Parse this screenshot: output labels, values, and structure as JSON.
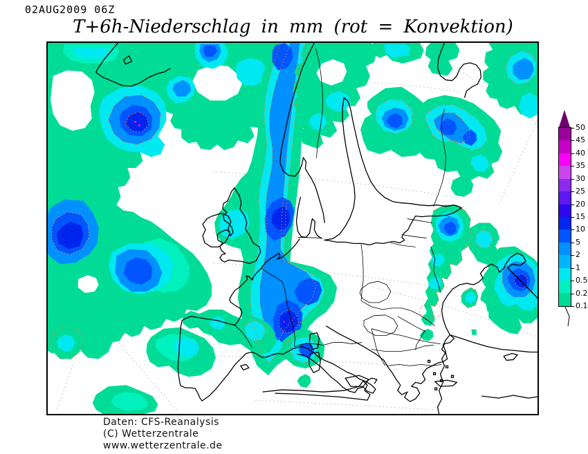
{
  "header": {
    "datetime": "02AUG2009 06Z",
    "title": "T+6h-Niederschlag in mm (rot = Konvektion)"
  },
  "footer": {
    "line1": "Daten: CFS-Reanalysis",
    "line2": "(C) Wetterzentrale",
    "line3": "www.wetterzentrale.de"
  },
  "colorbar": {
    "unit": "mm",
    "labels": [
      "50",
      "45",
      "40",
      "35",
      "30",
      "25",
      "20",
      "15",
      "10",
      "5",
      "2",
      "1",
      "0.5",
      "0.2",
      "0.1"
    ],
    "segments": [
      "#9b009b",
      "#c800c8",
      "#fa00fa",
      "#cc44ee",
      "#8b2bee",
      "#5e17f0",
      "#2e06f0",
      "#0026ee",
      "#0055ff",
      "#0090ff",
      "#00b4ff",
      "#00e8f0",
      "#00f0be",
      "#00dc96"
    ],
    "arrow_color": "#6e006e",
    "tick_color": "#000000"
  },
  "map": {
    "frame_color": "#000000",
    "sea_color": "#ffffff",
    "coast_color": "#000000",
    "border_color": "#000000",
    "graticule_color": "#b4b4b4",
    "convection_color": "#ff7a38",
    "palette": {
      "p01": "#00dc96",
      "p02": "#00f0be",
      "p05": "#00e8f0",
      "p1": "#00b4ff",
      "p2": "#0090ff",
      "p5": "#0055ff",
      "p10": "#0026ee",
      "p15": "#2e06f0",
      "heavy": "#8b2bee",
      "dot": "#fa00fa"
    }
  }
}
